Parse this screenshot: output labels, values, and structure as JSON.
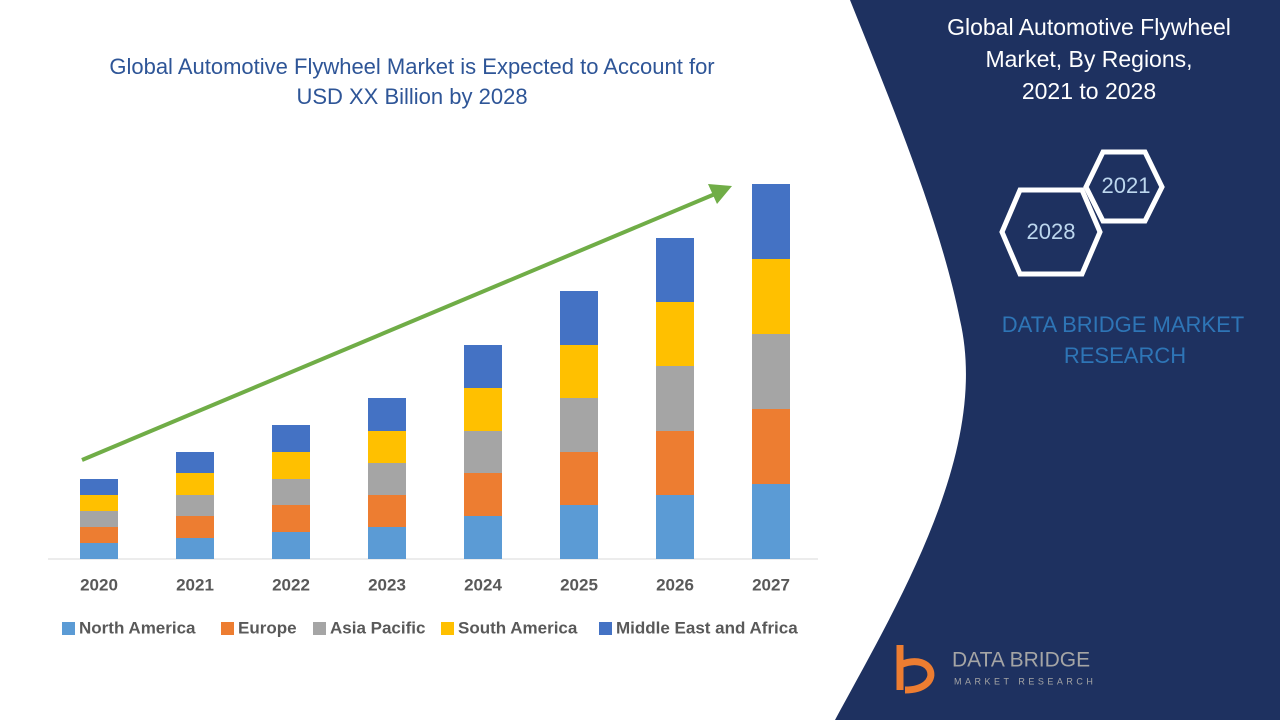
{
  "chart_data": {
    "type": "bar",
    "stacked": true,
    "title": [
      "Global Automotive Flywheel Market is Expected to Account for",
      "USD XX Billion by 2028"
    ],
    "categories": [
      "2020",
      "2021",
      "2022",
      "2023",
      "2024",
      "2025",
      "2026",
      "2027"
    ],
    "series": [
      {
        "name": "North America",
        "color": "#5b9bd5",
        "values": [
          16,
          21,
          27,
          32,
          43,
          54,
          64,
          75
        ]
      },
      {
        "name": "Europe",
        "color": "#ed7d31",
        "values": [
          16,
          22,
          27,
          32,
          43,
          53,
          64,
          75
        ]
      },
      {
        "name": "Asia Pacific",
        "color": "#a5a5a5",
        "values": [
          16,
          21,
          26,
          32,
          42,
          54,
          65,
          75
        ]
      },
      {
        "name": "South America",
        "color": "#ffc000",
        "values": [
          16,
          22,
          27,
          32,
          43,
          53,
          64,
          75
        ]
      },
      {
        "name": "Middle East and Africa",
        "color": "#4472c4",
        "values": [
          16,
          21,
          27,
          33,
          43,
          54,
          64,
          75
        ]
      }
    ],
    "ylim": [
      0,
      375
    ]
  },
  "panel": {
    "title": [
      "Global Automotive Flywheel",
      "Market, By Regions,",
      "2021 to 2028"
    ],
    "hexagons": [
      "2021",
      "2028"
    ],
    "brand": [
      "DATA BRIDGE MARKET",
      "RESEARCH"
    ]
  },
  "logo": {
    "name": "DATA BRIDGE",
    "tagline": "MARKET RESEARCH"
  }
}
